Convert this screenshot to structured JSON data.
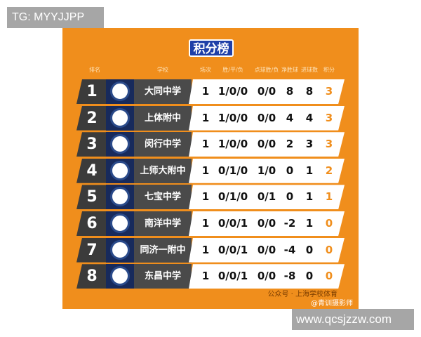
{
  "watermark_top": "TG: MYYJJPP",
  "watermark_bottom": "www.qcsjzzw.com",
  "title": "积分榜",
  "headers": [
    "排名",
    "学校",
    "场次",
    "胜/平/负",
    "点球胜/负",
    "净胜球",
    "进球数",
    "积分"
  ],
  "rows": [
    {
      "rank": "1",
      "school": "大同中学",
      "played": "1",
      "wdl": "1/0/0",
      "pens": "0/0",
      "gd": "8",
      "gf": "8",
      "pts": "3"
    },
    {
      "rank": "2",
      "school": "上体附中",
      "played": "1",
      "wdl": "1/0/0",
      "pens": "0/0",
      "gd": "4",
      "gf": "4",
      "pts": "3"
    },
    {
      "rank": "3",
      "school": "闵行中学",
      "played": "1",
      "wdl": "1/0/0",
      "pens": "0/0",
      "gd": "2",
      "gf": "3",
      "pts": "3"
    },
    {
      "rank": "4",
      "school": "上师大附中",
      "played": "1",
      "wdl": "0/1/0",
      "pens": "1/0",
      "gd": "0",
      "gf": "1",
      "pts": "2"
    },
    {
      "rank": "5",
      "school": "七宝中学",
      "played": "1",
      "wdl": "0/1/0",
      "pens": "0/1",
      "gd": "0",
      "gf": "1",
      "pts": "1"
    },
    {
      "rank": "6",
      "school": "南洋中学",
      "played": "1",
      "wdl": "0/0/1",
      "pens": "0/0",
      "gd": "-2",
      "gf": "1",
      "pts": "0"
    },
    {
      "rank": "7",
      "school": "同济一附中",
      "played": "1",
      "wdl": "0/0/1",
      "pens": "0/0",
      "gd": "-4",
      "gf": "0",
      "pts": "0"
    },
    {
      "rank": "8",
      "school": "东昌中学",
      "played": "1",
      "wdl": "0/0/1",
      "pens": "0/0",
      "gd": "-8",
      "gf": "0",
      "pts": "0"
    }
  ],
  "footer_wechat": "公众号 · 上海学校体育",
  "footer_weibo": "@青训摄影师",
  "colors": {
    "background": "#f08e1c",
    "title": "#1f3fa8",
    "points": "#f08e1c"
  }
}
